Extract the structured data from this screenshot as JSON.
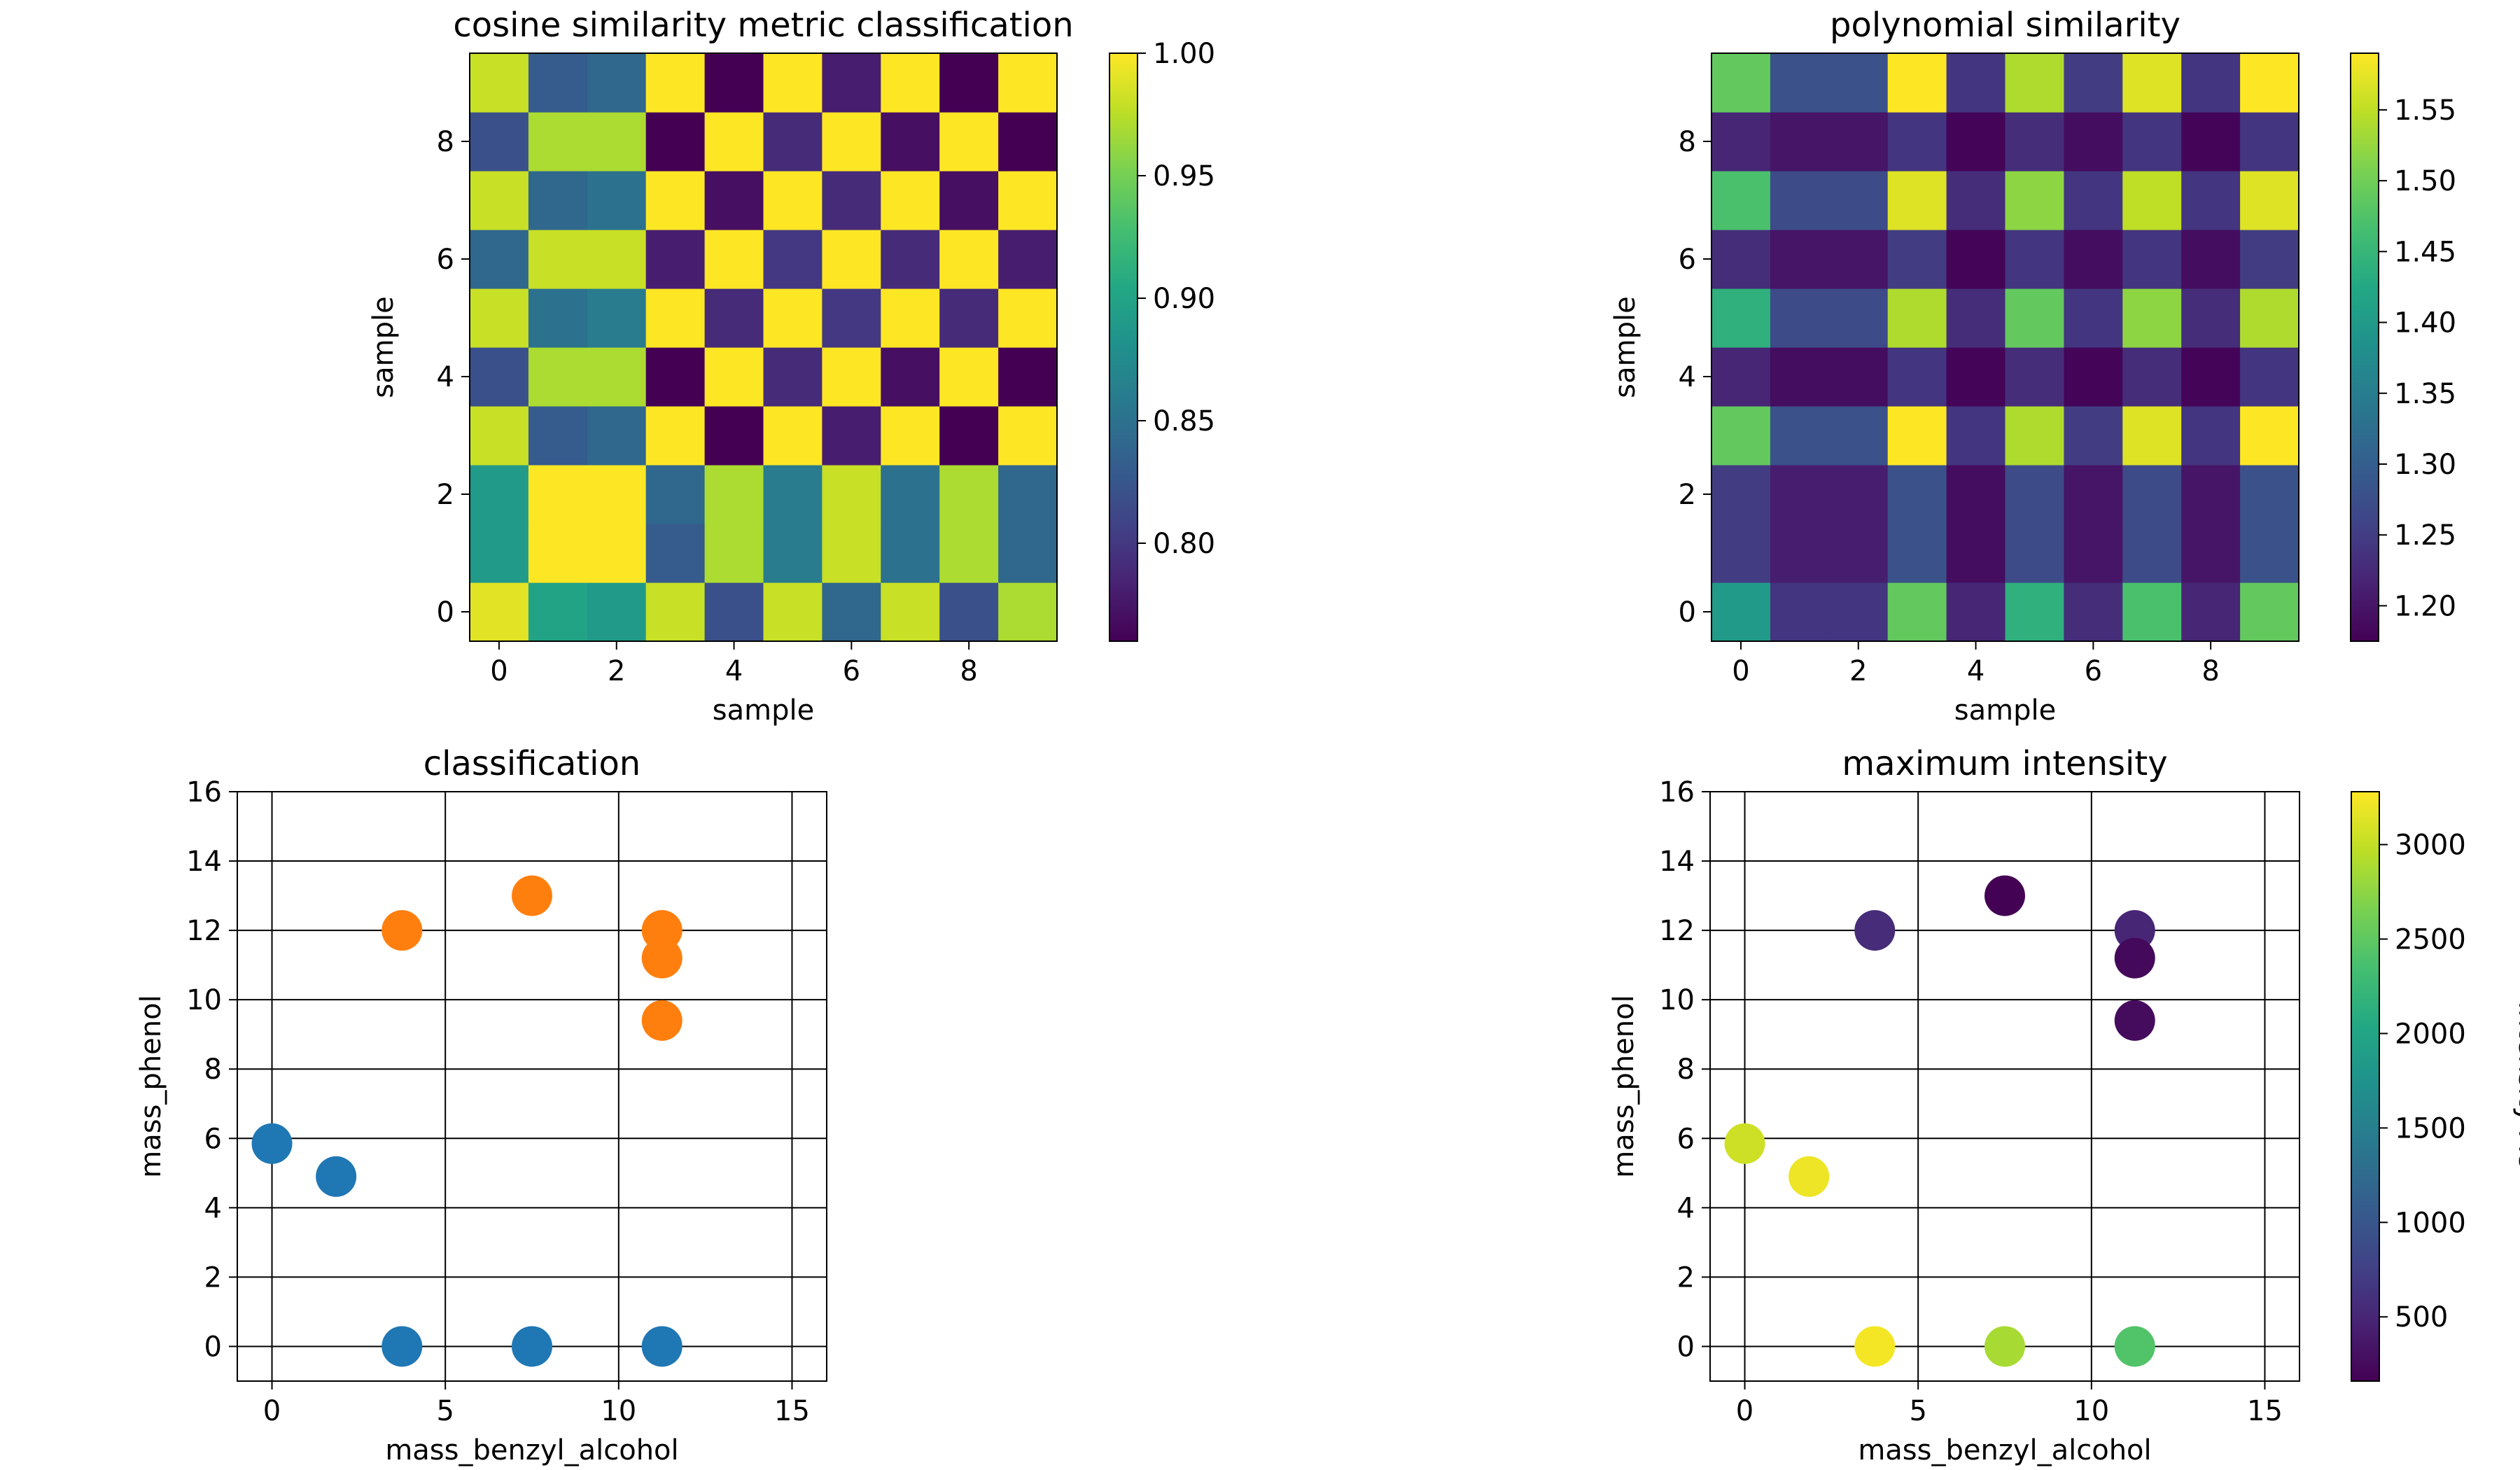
{
  "chart_data": [
    {
      "type": "heatmap",
      "title": "cosine similarity metric classification",
      "xlabel": "sample",
      "ylabel": "sample",
      "xticks": [
        0,
        2,
        4,
        6,
        8
      ],
      "yticks": [
        0,
        2,
        4,
        6,
        8
      ],
      "xlim": [
        -0.5,
        9.5
      ],
      "ylim": [
        -0.5,
        9.5
      ],
      "colormap": "viridis",
      "colorbar": {
        "vmin": 0.76,
        "vmax": 1.0,
        "ticks": [
          0.8,
          0.85,
          0.9,
          0.95,
          1.0
        ],
        "labels": [
          "0.80",
          "0.85",
          "0.90",
          "0.95",
          "1.00"
        ],
        "label": ""
      },
      "matrix_rows_from_y0": [
        [
          0.99,
          0.9,
          0.89,
          0.98,
          0.82,
          0.98,
          0.84,
          0.98,
          0.82,
          0.97
        ],
        [
          0.89,
          1.0,
          1.0,
          0.83,
          0.97,
          0.86,
          0.98,
          0.85,
          0.97,
          0.84
        ],
        [
          0.89,
          1.0,
          1.0,
          0.84,
          0.97,
          0.86,
          0.98,
          0.85,
          0.97,
          0.84
        ],
        [
          0.98,
          0.83,
          0.84,
          1.0,
          0.76,
          1.0,
          0.78,
          1.0,
          0.76,
          1.0
        ],
        [
          0.82,
          0.97,
          0.97,
          0.76,
          1.0,
          0.79,
          1.0,
          0.77,
          1.0,
          0.76
        ],
        [
          0.98,
          0.85,
          0.86,
          1.0,
          0.79,
          1.0,
          0.8,
          1.0,
          0.79,
          1.0
        ],
        [
          0.84,
          0.98,
          0.98,
          0.78,
          1.0,
          0.8,
          1.0,
          0.79,
          1.0,
          0.78
        ],
        [
          0.98,
          0.84,
          0.85,
          1.0,
          0.77,
          1.0,
          0.79,
          1.0,
          0.77,
          1.0
        ],
        [
          0.82,
          0.97,
          0.97,
          0.76,
          1.0,
          0.79,
          1.0,
          0.77,
          1.0,
          0.76
        ],
        [
          0.98,
          0.83,
          0.84,
          1.0,
          0.76,
          1.0,
          0.78,
          1.0,
          0.76,
          1.0
        ]
      ]
    },
    {
      "type": "heatmap",
      "title": "polynomial similarity",
      "xlabel": "sample",
      "ylabel": "sample",
      "xticks": [
        0,
        2,
        4,
        6,
        8
      ],
      "yticks": [
        0,
        2,
        4,
        6,
        8
      ],
      "xlim": [
        -0.5,
        9.5
      ],
      "ylim": [
        -0.5,
        9.5
      ],
      "colormap": "viridis",
      "colorbar": {
        "vmin": 1.175,
        "vmax": 1.59,
        "ticks": [
          1.2,
          1.25,
          1.3,
          1.35,
          1.4,
          1.45,
          1.5,
          1.55
        ],
        "labels": [
          "1.20",
          "1.25",
          "1.30",
          "1.35",
          "1.40",
          "1.45",
          "1.50",
          "1.55"
        ],
        "label": ""
      },
      "matrix_rows_from_y0": [
        [
          1.4,
          1.24,
          1.24,
          1.49,
          1.22,
          1.44,
          1.23,
          1.47,
          1.22,
          1.49
        ],
        [
          1.25,
          1.21,
          1.21,
          1.28,
          1.19,
          1.27,
          1.2,
          1.27,
          1.2,
          1.28
        ],
        [
          1.25,
          1.21,
          1.21,
          1.28,
          1.19,
          1.27,
          1.2,
          1.27,
          1.2,
          1.28
        ],
        [
          1.49,
          1.28,
          1.28,
          1.59,
          1.24,
          1.54,
          1.25,
          1.57,
          1.24,
          1.59
        ],
        [
          1.22,
          1.19,
          1.19,
          1.24,
          1.18,
          1.23,
          1.18,
          1.23,
          1.18,
          1.24
        ],
        [
          1.44,
          1.27,
          1.27,
          1.54,
          1.23,
          1.49,
          1.24,
          1.52,
          1.23,
          1.54
        ],
        [
          1.23,
          1.2,
          1.2,
          1.25,
          1.18,
          1.24,
          1.19,
          1.24,
          1.19,
          1.25
        ],
        [
          1.47,
          1.27,
          1.27,
          1.57,
          1.23,
          1.52,
          1.24,
          1.55,
          1.24,
          1.57
        ],
        [
          1.22,
          1.2,
          1.2,
          1.24,
          1.18,
          1.23,
          1.19,
          1.24,
          1.18,
          1.24
        ],
        [
          1.49,
          1.28,
          1.28,
          1.59,
          1.24,
          1.54,
          1.25,
          1.57,
          1.24,
          1.59
        ]
      ]
    },
    {
      "type": "scatter",
      "title": "classification",
      "xlabel": "mass_benzyl_alcohol",
      "ylabel": "mass_phenol",
      "xlim": [
        -1,
        16
      ],
      "ylim": [
        -1,
        16
      ],
      "xticks": [
        0,
        5,
        10,
        15
      ],
      "yticks": [
        0,
        2,
        4,
        6,
        8,
        10,
        12,
        14,
        16
      ],
      "grid": true,
      "series": [
        {
          "color": "#1f77b4",
          "points": [
            [
              0,
              5.85
            ],
            [
              1.85,
              4.9
            ],
            [
              3.75,
              0
            ],
            [
              7.5,
              0
            ],
            [
              11.25,
              0
            ]
          ]
        },
        {
          "color": "#ff7f0e",
          "points": [
            [
              3.75,
              12
            ],
            [
              7.5,
              13
            ],
            [
              11.25,
              12
            ],
            [
              11.25,
              11.2
            ],
            [
              11.25,
              9.4
            ]
          ]
        }
      ]
    },
    {
      "type": "scatter",
      "title": "maximum intensity",
      "xlabel": "mass_benzyl_alcohol",
      "ylabel": "mass_phenol",
      "xlim": [
        -1,
        16
      ],
      "ylim": [
        -1,
        16
      ],
      "xticks": [
        0,
        5,
        10,
        15
      ],
      "yticks": [
        0,
        2,
        4,
        6,
        8,
        10,
        12,
        14,
        16
      ],
      "grid": true,
      "colormap": "viridis",
      "colorbar": {
        "vmin": 160,
        "vmax": 3280,
        "ticks": [
          500,
          1000,
          1500,
          2000,
          2500,
          3000
        ],
        "labels": [
          "500",
          "1000",
          "1500",
          "2000",
          "2500",
          "3000"
        ],
        "label": "intensity AU"
      },
      "points": [
        {
          "x": 0,
          "y": 5.85,
          "value": 3050
        },
        {
          "x": 1.85,
          "y": 4.9,
          "value": 3200
        },
        {
          "x": 3.75,
          "y": 0,
          "value": 3240
        },
        {
          "x": 7.5,
          "y": 0,
          "value": 2870
        },
        {
          "x": 11.25,
          "y": 0,
          "value": 2420
        },
        {
          "x": 3.75,
          "y": 12,
          "value": 560
        },
        {
          "x": 7.5,
          "y": 13,
          "value": 170
        },
        {
          "x": 11.25,
          "y": 12,
          "value": 500
        },
        {
          "x": 11.25,
          "y": 11.2,
          "value": 230
        },
        {
          "x": 11.25,
          "y": 9.4,
          "value": 260
        }
      ]
    }
  ]
}
